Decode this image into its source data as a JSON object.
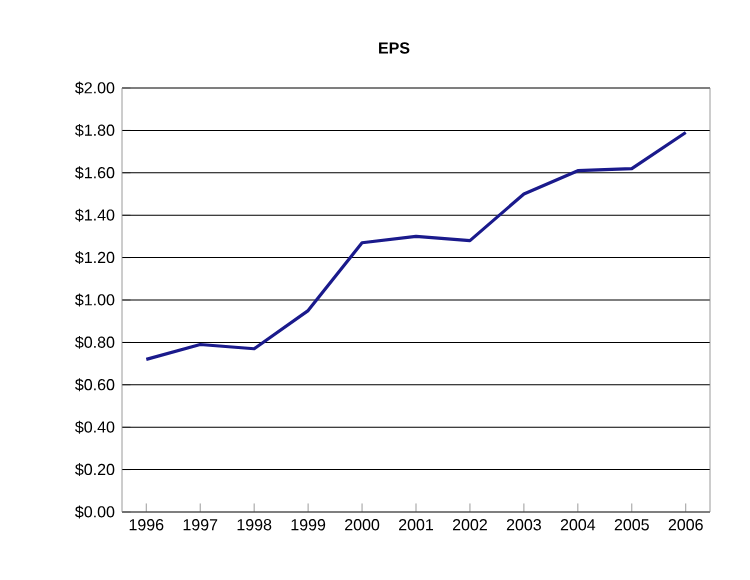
{
  "chart_data": {
    "type": "line",
    "title": "EPS",
    "categories": [
      "1996",
      "1997",
      "1998",
      "1999",
      "2000",
      "2001",
      "2002",
      "2003",
      "2004",
      "2005",
      "2006"
    ],
    "series": [
      {
        "color": "#1a1a8c",
        "values": [
          0.72,
          0.79,
          0.77,
          0.95,
          1.27,
          1.3,
          1.28,
          1.5,
          1.61,
          1.62,
          1.79
        ]
      }
    ],
    "ylim": [
      0,
      2
    ],
    "yticks": [
      {
        "value": 0,
        "label": "$0.00"
      },
      {
        "value": 0.2,
        "label": "$0.20"
      },
      {
        "value": 0.4,
        "label": "$0.40"
      },
      {
        "value": 0.6,
        "label": "$0.60"
      },
      {
        "value": 0.8,
        "label": "$0.80"
      },
      {
        "value": 1.0,
        "label": "$1.00"
      },
      {
        "value": 1.2,
        "label": "$1.20"
      },
      {
        "value": 1.4,
        "label": "$1.40"
      },
      {
        "value": 1.6,
        "label": "$1.60"
      },
      {
        "value": 1.8,
        "label": "$1.80"
      },
      {
        "value": 2.0,
        "label": "$2.00"
      }
    ],
    "grid": "y",
    "marker": "none",
    "line_style": "solid"
  }
}
